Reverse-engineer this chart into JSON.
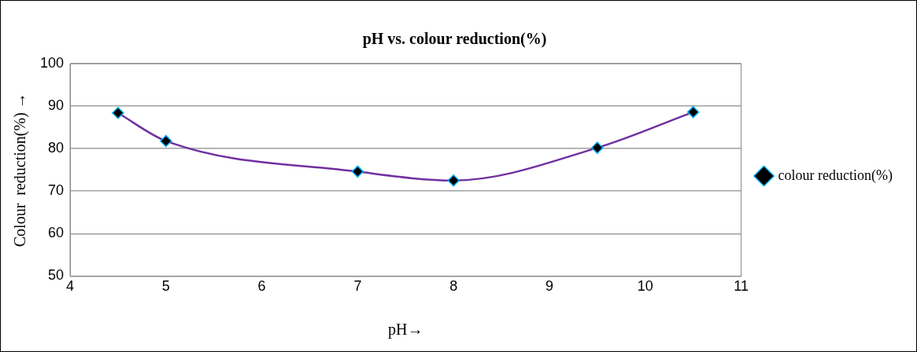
{
  "chart_data": {
    "type": "line",
    "title": "pH vs. colour reduction(%)",
    "xlabel": "pH→",
    "ylabel": "Colour  reduction(%) →",
    "x": [
      4.5,
      5,
      7,
      8,
      9.5,
      10.5
    ],
    "series": [
      {
        "name": "colour reduction(%)",
        "color": "#7030a0",
        "values": [
          88.4,
          81.8,
          74.6,
          72.5,
          80.2,
          88.6
        ]
      }
    ],
    "xlim": [
      4,
      11
    ],
    "xticks": [
      4,
      5,
      6,
      7,
      8,
      9,
      10,
      11
    ],
    "ylim": [
      50,
      100
    ],
    "yticks": [
      50,
      60,
      70,
      80,
      90,
      100
    ],
    "grid": "y",
    "legend": "right",
    "marker": "diamond",
    "line_style": "solid"
  }
}
